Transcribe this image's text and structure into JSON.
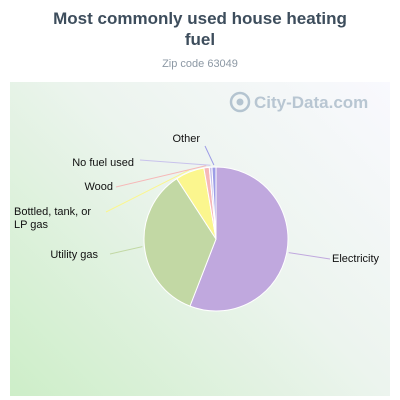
{
  "chart_data": {
    "type": "pie",
    "title": "Most commonly used house heating fuel",
    "subtitle": "Zip code 63049",
    "watermark": "City-Data.com",
    "slices": [
      {
        "label": "Electricity",
        "value": 56.0,
        "color": "#c0a8de"
      },
      {
        "label": "Utility gas",
        "value": 35.0,
        "color": "#c2d8a4"
      },
      {
        "label": "Bottled, tank, or LP gas",
        "value": 6.5,
        "color": "#fbf68e"
      },
      {
        "label": "Wood",
        "value": 1.2,
        "color": "#f6b8b8"
      },
      {
        "label": "No fuel used",
        "value": 0.6,
        "color": "#c8c2ec"
      },
      {
        "label": "Other",
        "value": 0.9,
        "color": "#9d9de6"
      }
    ]
  }
}
